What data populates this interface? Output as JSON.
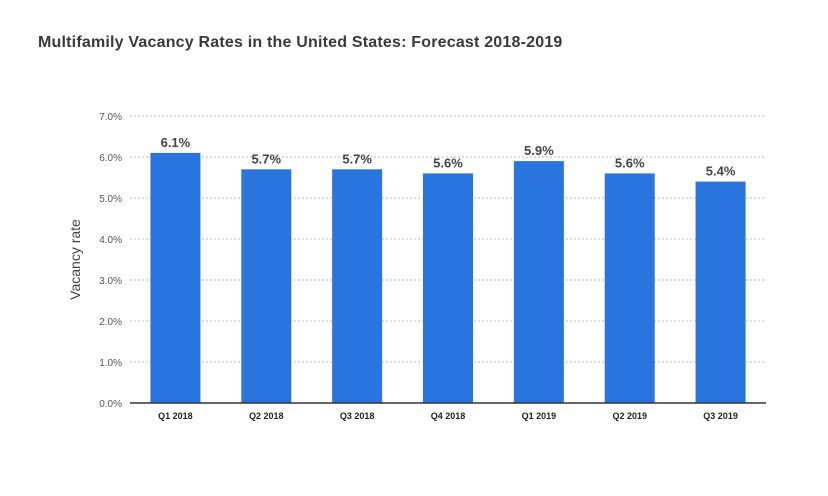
{
  "chart_data": {
    "type": "bar",
    "title": "Multifamily Vacancy Rates in the United States: Forecast 2018-2019",
    "ylabel": "Vacancy rate",
    "xlabel": "",
    "categories": [
      "Q1 2018",
      "Q2 2018",
      "Q3 2018",
      "Q4 2018",
      "Q1 2019",
      "Q2 2019",
      "Q3 2019"
    ],
    "values": [
      6.1,
      5.7,
      5.7,
      5.6,
      5.9,
      5.6,
      5.4
    ],
    "value_labels": [
      "6.1%",
      "5.7%",
      "5.7%",
      "5.6%",
      "5.9%",
      "5.6%",
      "5.4%"
    ],
    "ylim": [
      0,
      7
    ],
    "yticks": [
      0,
      1,
      2,
      3,
      4,
      5,
      6,
      7
    ],
    "ytick_labels": [
      "0.0%",
      "1.0%",
      "2.0%",
      "3.0%",
      "4.0%",
      "5.0%",
      "6.0%",
      "7.0%"
    ],
    "grid": true,
    "bar_color": "#2a74dd"
  }
}
